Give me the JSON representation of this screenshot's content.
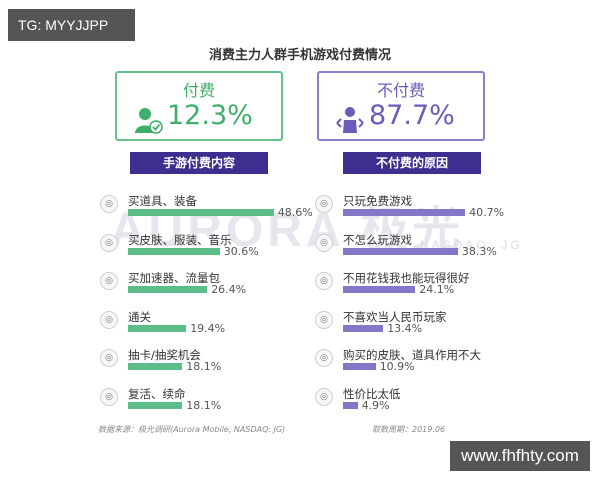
{
  "overlay": {
    "tg": "TG: MYYJJPP",
    "site": "www.fhfhty.com"
  },
  "title": "消费主力人群手机游戏付费情况",
  "watermark": {
    "main": "AURORA 极光",
    "sub": "NASDAQ: JG"
  },
  "stats": {
    "paid": {
      "label": "付费",
      "value": "12.3%",
      "icon": "user-check-icon",
      "color": "#3fae6a"
    },
    "unpaid": {
      "label": "不付费",
      "value": "87.7%",
      "icon": "user-group-icon",
      "color": "#6a5cb8"
    }
  },
  "footer": {
    "source": "数据来源：极光调研(Aurora Mobile, NASDAQ: JG)",
    "period": "取数周期：2019.06"
  },
  "chart_data": [
    {
      "type": "bar",
      "title": "手游付费内容",
      "categories": [
        "买道具、装备",
        "买皮肤、服装、音乐",
        "买加速器、流量包",
        "通关",
        "抽卡/抽奖机会",
        "复活、续命"
      ],
      "values": [
        48.6,
        30.6,
        26.4,
        19.4,
        18.1,
        18.1
      ],
      "value_labels": [
        "48.6%",
        "30.6%",
        "26.4%",
        "19.4%",
        "18.1%",
        "18.1%"
      ],
      "color": "#5cbd88",
      "xlim": [
        0,
        50
      ]
    },
    {
      "type": "bar",
      "title": "不付费的原因",
      "categories": [
        "只玩免费游戏",
        "不怎么玩游戏",
        "不用花钱我也能玩得很好",
        "不喜欢当人民币玩家",
        "购买的皮肤、道具作用不大",
        "性价比太低"
      ],
      "values": [
        40.7,
        38.3,
        24.1,
        13.4,
        10.9,
        4.9
      ],
      "value_labels": [
        "40.7%",
        "38.3%",
        "24.1%",
        "13.4%",
        "10.9%",
        "4.9%"
      ],
      "color": "#8576c8",
      "xlim": [
        0,
        50
      ]
    }
  ]
}
